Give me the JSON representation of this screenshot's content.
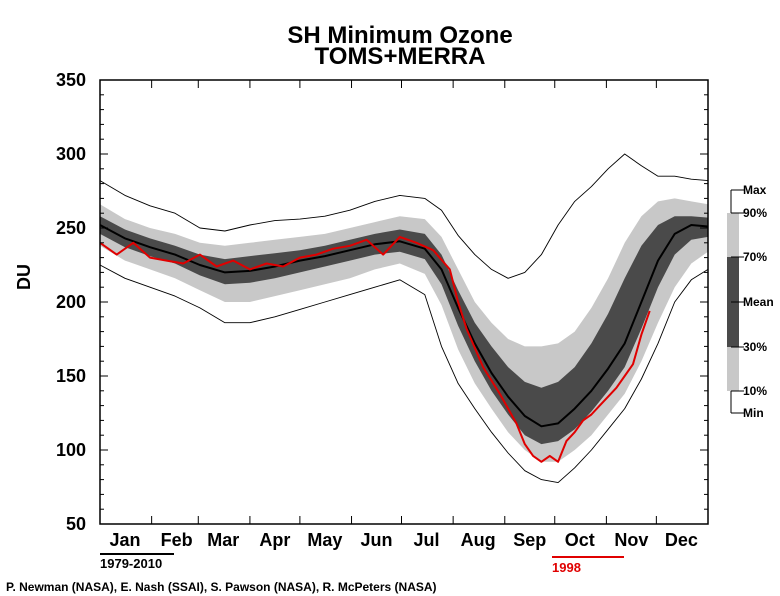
{
  "title": "SH Minimum Ozone",
  "subtitle": "TOMS+MERRA",
  "credits": "P. Newman (NASA), E. Nash (SSAI), S. Pawson (NASA), R. McPeters (NASA)",
  "period_climatology": "1979-2010",
  "period_highlight": "1998",
  "colors": {
    "band_10_90": "#c8c8c8",
    "band_30_70": "#4a4a4a",
    "mean_line": "#000000",
    "minmax_line": "#000000",
    "highlight_line": "#e00000"
  },
  "chart_data": {
    "type": "area",
    "title": "SH Minimum Ozone",
    "subtitle": "TOMS+MERRA",
    "xlabel": "",
    "ylabel": "DU",
    "ylim": [
      50,
      350
    ],
    "yticks": [
      50,
      100,
      150,
      200,
      250,
      300,
      350
    ],
    "xlim": [
      0,
      365
    ],
    "x_unit": "day of year",
    "months": [
      "Jan",
      "Feb",
      "Mar",
      "Apr",
      "May",
      "Jun",
      "Jul",
      "Aug",
      "Sep",
      "Oct",
      "Nov",
      "Dec"
    ],
    "month_label_days": [
      15,
      46,
      74,
      105,
      135,
      166,
      196,
      227,
      258,
      288,
      319,
      349
    ],
    "grid": false,
    "legend_position": "right",
    "legend": [
      "Max",
      "90%",
      "70%",
      "Mean",
      "30%",
      "10%",
      "Min"
    ],
    "x": [
      0,
      15,
      30,
      45,
      60,
      75,
      90,
      105,
      120,
      135,
      150,
      165,
      180,
      195,
      205,
      215,
      225,
      235,
      245,
      255,
      265,
      275,
      285,
      295,
      305,
      315,
      325,
      335,
      345,
      355,
      365
    ],
    "series": [
      {
        "name": "Max",
        "values": [
          282,
          272,
          265,
          260,
          250,
          248,
          252,
          255,
          256,
          258,
          262,
          268,
          272,
          270,
          262,
          245,
          232,
          222,
          216,
          220,
          232,
          252,
          268,
          278,
          290,
          300,
          292,
          285,
          285,
          283,
          282
        ]
      },
      {
        "name": "90%",
        "values": [
          266,
          256,
          250,
          246,
          240,
          238,
          240,
          242,
          244,
          246,
          250,
          254,
          258,
          256,
          244,
          222,
          200,
          186,
          175,
          170,
          170,
          172,
          180,
          196,
          216,
          240,
          258,
          268,
          270,
          268,
          266
        ]
      },
      {
        "name": "70%",
        "values": [
          258,
          249,
          243,
          238,
          232,
          229,
          231,
          233,
          235,
          238,
          242,
          246,
          249,
          246,
          232,
          208,
          186,
          170,
          156,
          146,
          142,
          146,
          156,
          172,
          192,
          216,
          238,
          252,
          258,
          258,
          257
        ]
      },
      {
        "name": "Mean",
        "values": [
          252,
          243,
          237,
          232,
          225,
          220,
          221,
          224,
          228,
          231,
          235,
          239,
          241,
          236,
          222,
          196,
          172,
          152,
          136,
          123,
          116,
          118,
          128,
          140,
          155,
          172,
          200,
          228,
          246,
          252,
          251
        ]
      },
      {
        "name": "30%",
        "values": [
          246,
          237,
          231,
          226,
          218,
          212,
          213,
          216,
          220,
          224,
          228,
          232,
          234,
          229,
          212,
          184,
          160,
          140,
          124,
          110,
          104,
          106,
          114,
          126,
          140,
          156,
          182,
          210,
          232,
          242,
          244
        ]
      },
      {
        "name": "10%",
        "values": [
          238,
          228,
          222,
          216,
          208,
          200,
          200,
          204,
          208,
          212,
          216,
          222,
          226,
          219,
          198,
          168,
          145,
          128,
          112,
          100,
          92,
          92,
          100,
          110,
          124,
          138,
          160,
          186,
          210,
          226,
          234
        ]
      },
      {
        "name": "Min",
        "values": [
          225,
          216,
          210,
          204,
          196,
          186,
          186,
          190,
          195,
          200,
          205,
          210,
          215,
          205,
          170,
          145,
          128,
          112,
          98,
          86,
          80,
          78,
          88,
          100,
          114,
          128,
          148,
          172,
          200,
          215,
          222
        ]
      },
      {
        "name": "1998",
        "x": [
          0,
          10,
          20,
          30,
          40,
          50,
          60,
          70,
          80,
          90,
          100,
          110,
          120,
          130,
          140,
          150,
          160,
          170,
          180,
          190,
          200,
          210,
          215,
          220,
          230,
          240,
          250,
          255,
          260,
          265,
          270,
          275,
          280,
          285,
          290,
          295,
          300,
          305,
          310,
          315,
          320,
          325,
          330
        ],
        "values": [
          240,
          232,
          240,
          230,
          228,
          226,
          232,
          224,
          228,
          222,
          226,
          224,
          230,
          232,
          236,
          238,
          242,
          232,
          244,
          240,
          235,
          222,
          200,
          182,
          156,
          138,
          118,
          104,
          96,
          92,
          96,
          92,
          106,
          112,
          120,
          124,
          130,
          136,
          142,
          150,
          158,
          178,
          194
        ]
      }
    ]
  }
}
